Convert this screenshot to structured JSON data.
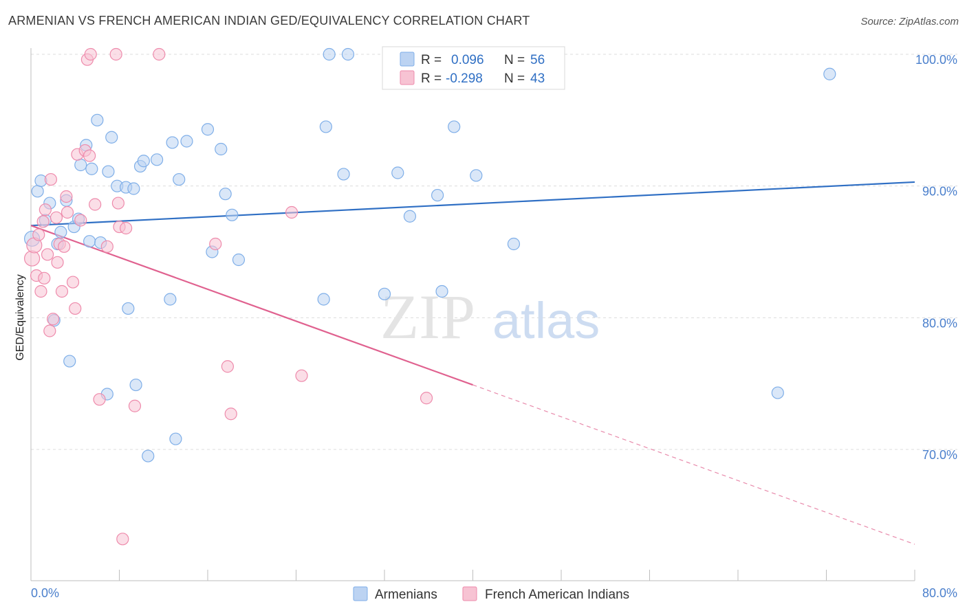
{
  "header": {
    "title": "ARMENIAN VS FRENCH AMERICAN INDIAN GED/EQUIVALENCY CORRELATION CHART",
    "source": "Source: ZipAtlas.com"
  },
  "legend": {
    "r_label": "R =",
    "n_label": "N =",
    "series": [
      {
        "name": "Armenians",
        "r": "0.096",
        "n": "56",
        "color": "#7eaee8",
        "fill": "#bcd3f2"
      },
      {
        "name": "French American Indians",
        "r": "-0.298",
        "n": "43",
        "color": "#ee8aab",
        "fill": "#f7c3d3"
      }
    ]
  },
  "watermark": {
    "zip": "ZIP",
    "atlas": "atlas"
  },
  "chart_data": {
    "type": "scatter",
    "xlabel": "",
    "ylabel": "GED/Equivalency",
    "xlim": [
      0,
      80
    ],
    "ylim": [
      60,
      102
    ],
    "x_tick_labels": [
      "0.0%",
      "80.0%"
    ],
    "y_ticks": [
      70,
      80,
      90,
      100
    ],
    "y_tick_labels": [
      "70.0%",
      "80.0%",
      "90.0%",
      "100.0%"
    ],
    "grid": true,
    "series": [
      {
        "name": "Armenians",
        "color": "#4f86d6",
        "points": [
          [
            0.1,
            86.0
          ],
          [
            0.6,
            89.6
          ],
          [
            0.9,
            90.4
          ],
          [
            1.3,
            87.4
          ],
          [
            1.7,
            88.7
          ],
          [
            2.1,
            79.8
          ],
          [
            2.4,
            85.6
          ],
          [
            2.7,
            86.5
          ],
          [
            3.2,
            88.9
          ],
          [
            3.5,
            76.7
          ],
          [
            3.9,
            86.9
          ],
          [
            4.3,
            87.5
          ],
          [
            4.5,
            91.6
          ],
          [
            5.0,
            93.1
          ],
          [
            5.3,
            85.8
          ],
          [
            5.5,
            91.3
          ],
          [
            6.0,
            95.0
          ],
          [
            6.3,
            85.7
          ],
          [
            6.9,
            74.2
          ],
          [
            7.0,
            91.1
          ],
          [
            7.3,
            93.7
          ],
          [
            7.8,
            90.0
          ],
          [
            8.6,
            89.9
          ],
          [
            8.8,
            80.7
          ],
          [
            9.3,
            89.8
          ],
          [
            9.5,
            74.9
          ],
          [
            9.9,
            91.5
          ],
          [
            10.2,
            91.9
          ],
          [
            10.6,
            69.5
          ],
          [
            11.4,
            92.0
          ],
          [
            12.6,
            81.4
          ],
          [
            12.8,
            93.3
          ],
          [
            13.1,
            70.8
          ],
          [
            13.4,
            90.5
          ],
          [
            14.1,
            93.4
          ],
          [
            16.0,
            94.3
          ],
          [
            16.4,
            85.0
          ],
          [
            17.2,
            92.8
          ],
          [
            17.6,
            89.4
          ],
          [
            18.2,
            87.8
          ],
          [
            18.8,
            84.4
          ],
          [
            26.5,
            81.4
          ],
          [
            26.7,
            94.5
          ],
          [
            27.0,
            100.0
          ],
          [
            28.3,
            90.9
          ],
          [
            28.7,
            100.0
          ],
          [
            32.0,
            81.8
          ],
          [
            33.2,
            91.0
          ],
          [
            34.3,
            87.7
          ],
          [
            36.8,
            89.3
          ],
          [
            37.2,
            82.0
          ],
          [
            38.3,
            94.5
          ],
          [
            40.3,
            90.8
          ],
          [
            43.7,
            85.6
          ],
          [
            67.6,
            74.3
          ],
          [
            72.3,
            98.5
          ]
        ]
      },
      {
        "name": "French American Indians",
        "color": "#e57ba0",
        "points": [
          [
            0.1,
            84.5
          ],
          [
            0.3,
            85.5
          ],
          [
            0.5,
            83.2
          ],
          [
            0.7,
            86.3
          ],
          [
            0.9,
            82.0
          ],
          [
            1.1,
            87.3
          ],
          [
            1.2,
            83.0
          ],
          [
            1.3,
            88.2
          ],
          [
            1.5,
            84.8
          ],
          [
            1.7,
            79.0
          ],
          [
            1.8,
            90.5
          ],
          [
            2.0,
            79.9
          ],
          [
            2.3,
            87.6
          ],
          [
            2.4,
            84.2
          ],
          [
            2.6,
            85.6
          ],
          [
            2.8,
            82.0
          ],
          [
            3.0,
            85.4
          ],
          [
            3.2,
            89.2
          ],
          [
            3.3,
            88.0
          ],
          [
            3.8,
            82.7
          ],
          [
            4.0,
            80.7
          ],
          [
            4.2,
            92.4
          ],
          [
            4.5,
            87.4
          ],
          [
            4.9,
            92.7
          ],
          [
            5.1,
            99.6
          ],
          [
            5.3,
            92.3
          ],
          [
            5.4,
            100.0
          ],
          [
            5.8,
            88.6
          ],
          [
            6.2,
            73.8
          ],
          [
            6.9,
            85.4
          ],
          [
            7.7,
            100.0
          ],
          [
            7.9,
            88.7
          ],
          [
            8.0,
            86.9
          ],
          [
            8.3,
            63.2
          ],
          [
            8.6,
            86.8
          ],
          [
            9.4,
            73.3
          ],
          [
            11.6,
            100.0
          ],
          [
            16.7,
            85.6
          ],
          [
            17.8,
            76.3
          ],
          [
            18.1,
            72.7
          ],
          [
            23.6,
            88.0
          ],
          [
            24.5,
            75.6
          ],
          [
            35.8,
            73.9
          ]
        ]
      }
    ],
    "trendlines": [
      {
        "series": "Armenians",
        "from": [
          0,
          87.0
        ],
        "to": [
          80,
          90.3
        ]
      },
      {
        "series": "French American Indians",
        "from": [
          0,
          87.0
        ],
        "to": [
          40,
          74.9
        ],
        "dashed_extension_to": [
          80,
          62.8
        ]
      }
    ]
  }
}
